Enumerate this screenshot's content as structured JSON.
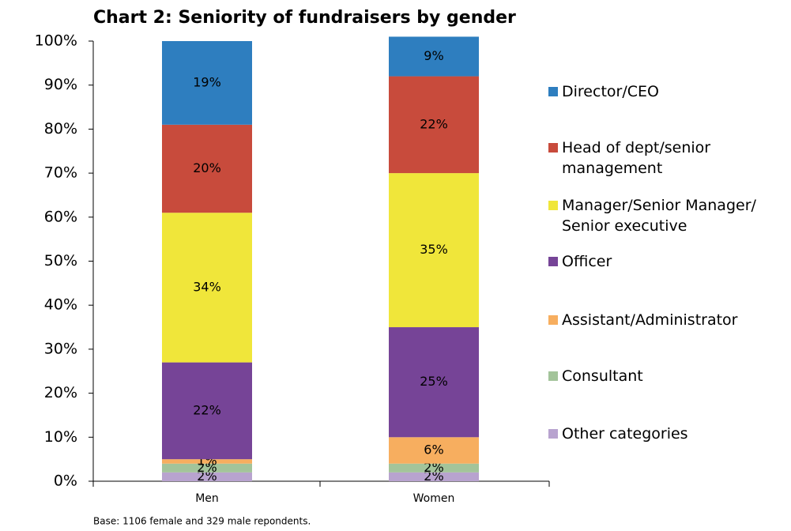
{
  "chart_data": {
    "type": "stacked_bar",
    "title": "Chart 2: Seniority of fundraisers by gender",
    "footnote": "Base: 1106 female and 329 male repondents.",
    "categories": [
      "Men",
      "Women"
    ],
    "series": [
      {
        "name": "Director/CEO",
        "color": "#2e7ebf",
        "values": [
          19,
          9
        ],
        "value_labels": [
          "19%",
          "9%"
        ]
      },
      {
        "name": "Head of dept/senior management",
        "color": "#c84b3c",
        "values": [
          20,
          22
        ],
        "value_labels": [
          "20%",
          "22%"
        ]
      },
      {
        "name": "Manager/Senior Manager/ Senior executive",
        "color": "#f0e63a",
        "values": [
          34,
          35
        ],
        "value_labels": [
          "34%",
          "35%"
        ]
      },
      {
        "name": "Officer",
        "color": "#764497",
        "values": [
          22,
          25
        ],
        "value_labels": [
          "22%",
          "25%"
        ]
      },
      {
        "name": "Assistant/Administrator",
        "color": "#f7ae5f",
        "values": [
          1,
          6
        ],
        "value_labels": [
          "1%",
          "6%"
        ]
      },
      {
        "name": "Consultant",
        "color": "#a3c49a",
        "values": [
          2,
          2
        ],
        "value_labels": [
          "2%",
          "2%"
        ]
      },
      {
        "name": "Other categories",
        "color": "#b8a3cf",
        "values": [
          2,
          2
        ],
        "value_labels": [
          "2%",
          "2%"
        ]
      }
    ],
    "ylim": [
      0,
      100
    ],
    "yticks": [
      {
        "value": 0,
        "label": "0%"
      },
      {
        "value": 10,
        "label": "10%"
      },
      {
        "value": 20,
        "label": "20%"
      },
      {
        "value": 30,
        "label": "30%"
      },
      {
        "value": 40,
        "label": "40%"
      },
      {
        "value": 50,
        "label": "50%"
      },
      {
        "value": 60,
        "label": "60%"
      },
      {
        "value": 70,
        "label": "70%"
      },
      {
        "value": 80,
        "label": "80%"
      },
      {
        "value": 90,
        "label": "90%"
      },
      {
        "value": 100,
        "label": "100%"
      }
    ],
    "legend": "right"
  }
}
